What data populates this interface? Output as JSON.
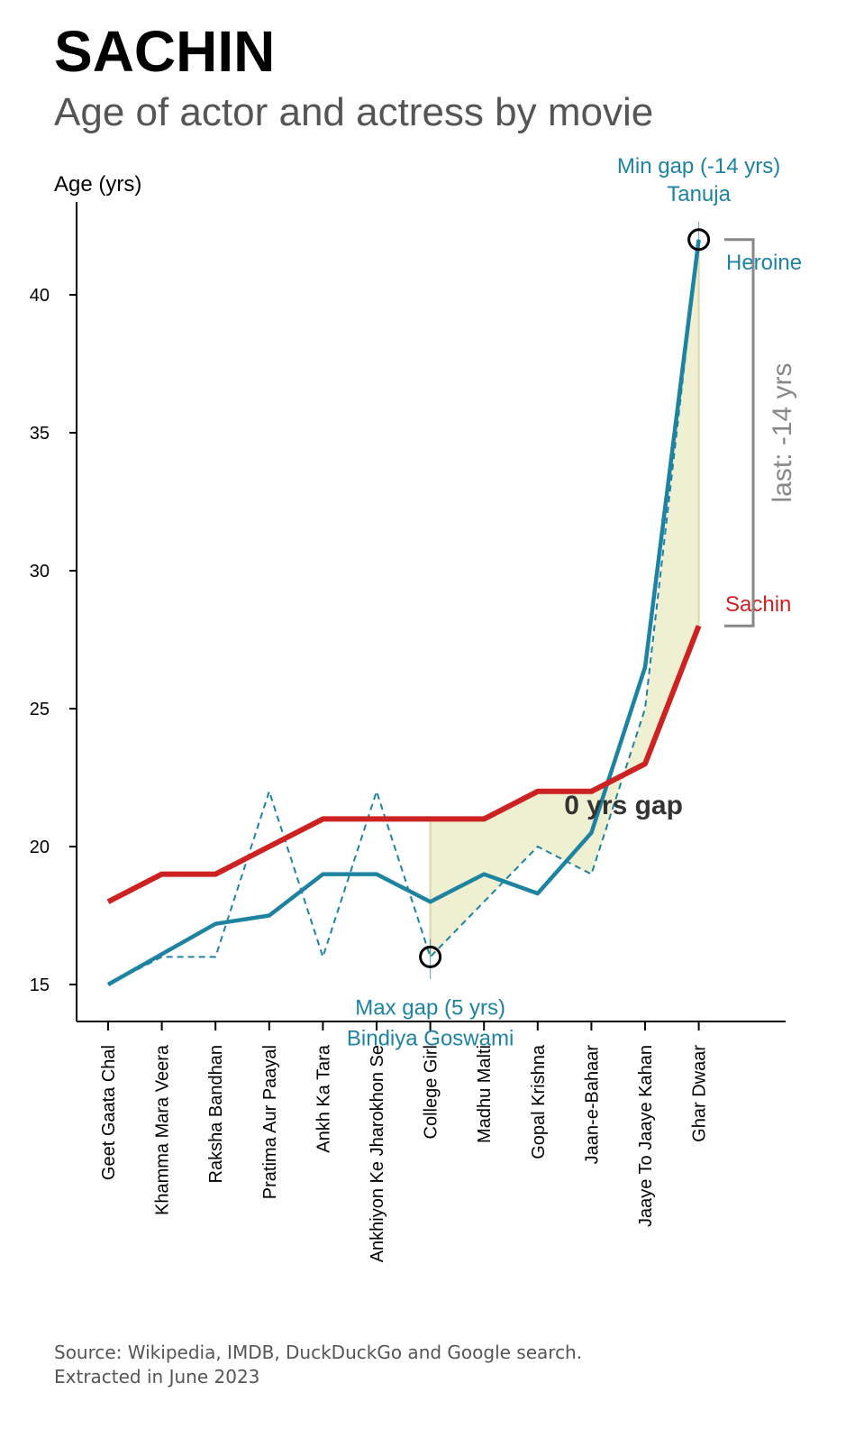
{
  "header": {
    "title": "SACHIN",
    "subtitle": "Age of actor and actress by movie"
  },
  "footer": {
    "source_line1": "Source: Wikipedia, IMDB, DuckDuckGo and Google search.",
    "source_line2": "Extracted in June 2023"
  },
  "colors": {
    "actor": "#cc2222",
    "heroine": "#1d83a0",
    "gap_fill": "#eeeed0",
    "bracket": "#888888",
    "gap_label": "#333333"
  },
  "chart_data": {
    "type": "line",
    "ylabel": "Age (yrs)",
    "ylim": [
      13.5,
      43.2
    ],
    "yticks": [
      15,
      20,
      25,
      30,
      35,
      40
    ],
    "categories": [
      "Geet Gaata Chal",
      "Khamma Mara Veera",
      "Raksha Bandhan",
      "Pratima Aur Paayal",
      "Ankh Ka Tara",
      "Ankhiyon Ke Jharokhon Se",
      "College Girl",
      "Madhu Malti",
      "Gopal Krishna",
      "Jaan-e-Bahaar",
      "Jaaye To Jaaye Kahan",
      "Ghar Dwaar"
    ],
    "series": [
      {
        "name": "Sachin",
        "style": "solid-thick",
        "values": [
          18,
          19,
          19,
          20,
          21,
          21,
          21,
          21,
          22,
          22,
          23,
          28
        ]
      },
      {
        "name": "Heroine",
        "style": "solid",
        "values": [
          15,
          16.1,
          17.2,
          17.5,
          19,
          19,
          18,
          19,
          18.3,
          20.5,
          26.5,
          42
        ]
      },
      {
        "name": "",
        "style": "dashed",
        "values": [
          15,
          16,
          16,
          22,
          16,
          22,
          16,
          18,
          20,
          19,
          25,
          42
        ]
      }
    ],
    "shaded_gap_from_index": 6,
    "annotations": {
      "max_gap": {
        "index": 6,
        "value": 16,
        "line1": "Max gap (5 yrs)",
        "line2": "Bindiya Goswami"
      },
      "min_gap": {
        "index": 11,
        "value": 42,
        "line1": "Min gap (-14 yrs)",
        "line2": "Tanuja"
      },
      "zero_gap": {
        "label": "0 yrs gap",
        "index": 9.5,
        "value": 21.5
      },
      "last_gap": {
        "label": "last: -14 yrs",
        "from": 28,
        "to": 42
      },
      "actor_label": "Sachin",
      "heroine_label": "Heroine"
    }
  }
}
